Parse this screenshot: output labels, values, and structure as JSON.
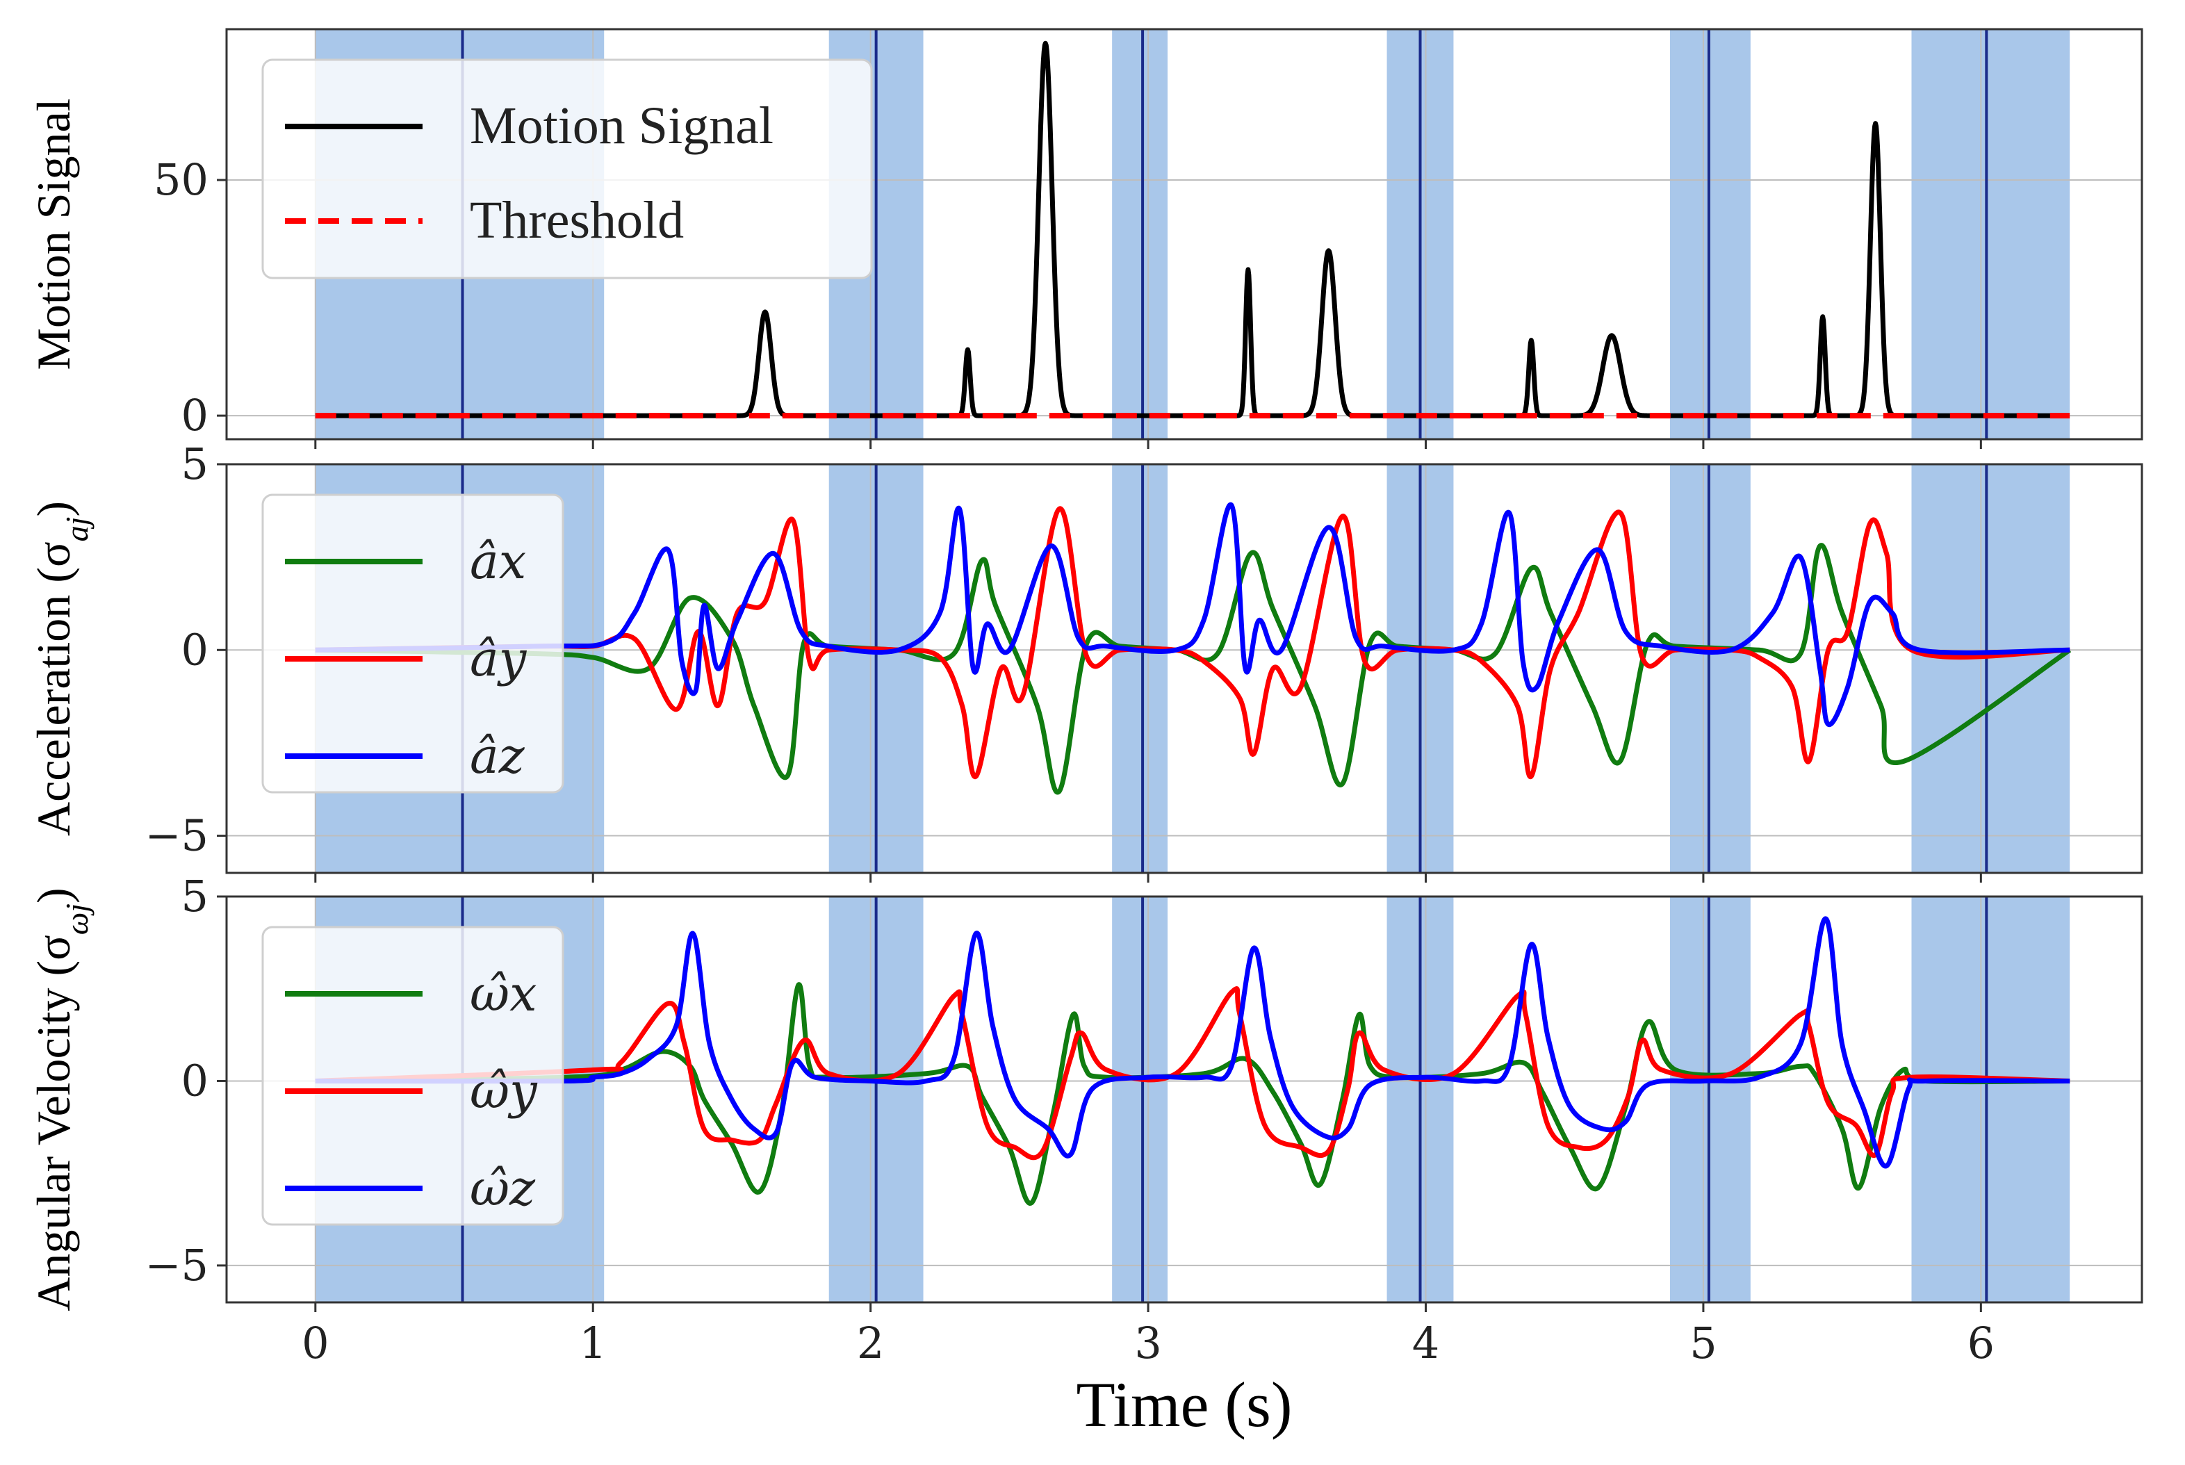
{
  "chart_data": [
    {
      "type": "line",
      "ylabel": "Motion Signal",
      "ylim": [
        -5,
        82
      ],
      "yticks": [
        0,
        50
      ],
      "ytick_labels": [
        "0",
        "50"
      ],
      "xlim": [
        -0.32,
        6.58
      ],
      "grid": true,
      "legend_position": "top-left",
      "legend": [
        "Motion Signal",
        "Threshold"
      ],
      "shaded_intervals": [
        [
          0,
          1.04
        ],
        [
          1.85,
          2.19
        ],
        [
          2.87,
          3.07
        ],
        [
          3.86,
          4.1
        ],
        [
          4.88,
          5.17
        ],
        [
          5.75,
          6.32
        ]
      ],
      "event_lines": [
        0.53,
        2.02,
        2.98,
        3.98,
        5.02,
        6.02
      ],
      "peaks": [
        {
          "t": 1.62,
          "h": 22,
          "w": 0.022
        },
        {
          "t": 2.35,
          "h": 14,
          "w": 0.009
        },
        {
          "t": 2.63,
          "h": 79,
          "w": 0.024
        },
        {
          "t": 3.36,
          "h": 31,
          "w": 0.009
        },
        {
          "t": 3.65,
          "h": 35,
          "w": 0.024
        },
        {
          "t": 4.38,
          "h": 16,
          "w": 0.009
        },
        {
          "t": 4.67,
          "h": 17,
          "w": 0.032
        },
        {
          "t": 5.43,
          "h": 21,
          "w": 0.009
        },
        {
          "t": 5.62,
          "h": 62,
          "w": 0.018
        }
      ],
      "series": [
        {
          "name": "Motion Signal",
          "color": "#000000",
          "style": "solid"
        },
        {
          "name": "Threshold",
          "color": "#ff0000",
          "style": "dashed",
          "value": 0
        }
      ]
    },
    {
      "type": "line",
      "ylabel": "Acceleration (σ",
      "ylabel_sub": "aj",
      "ylim": [
        -6,
        5
      ],
      "yticks": [
        -5,
        0,
        5
      ],
      "ytick_labels": [
        "−5",
        "0",
        "5"
      ],
      "xlim": [
        -0.32,
        6.58
      ],
      "grid": true,
      "legend_position": "top-left",
      "legend": [
        "âx",
        "ây",
        "âz"
      ],
      "series": [
        {
          "name": "âx",
          "color": "#107c10",
          "x": [
            0,
            0.8,
            1.0,
            1.2,
            1.35,
            1.5,
            1.58,
            1.7,
            1.76,
            1.85,
            2.1,
            2.3,
            2.4,
            2.45,
            2.6,
            2.68,
            2.78,
            2.9,
            3.1,
            3.25,
            3.37,
            3.45,
            3.6,
            3.7,
            3.8,
            3.9,
            4.1,
            4.25,
            4.38,
            4.45,
            4.6,
            4.7,
            4.8,
            4.9,
            5.2,
            5.35,
            5.42,
            5.5,
            5.64,
            5.72,
            6.32
          ],
          "y": [
            0,
            -0.1,
            -0.2,
            -0.5,
            1.4,
            0.3,
            -1.5,
            -3.4,
            0.2,
            0.1,
            0,
            -0.1,
            2.4,
            1.2,
            -1.5,
            -3.8,
            0.2,
            0.1,
            0,
            -0.1,
            2.6,
            1.1,
            -1.5,
            -3.6,
            0.2,
            0.1,
            0,
            -0.1,
            2.2,
            1.0,
            -1.5,
            -3.0,
            0.2,
            0.1,
            0,
            -0.1,
            2.8,
            1.0,
            -1.5,
            -3.0,
            0
          ]
        },
        {
          "name": "ây",
          "color": "#ff0000",
          "x": [
            0,
            0.8,
            1.0,
            1.15,
            1.3,
            1.38,
            1.45,
            1.52,
            1.62,
            1.72,
            1.78,
            1.85,
            2.1,
            2.25,
            2.33,
            2.38,
            2.47,
            2.55,
            2.68,
            2.78,
            2.9,
            3.1,
            3.2,
            3.33,
            3.38,
            3.45,
            3.55,
            3.7,
            3.78,
            3.9,
            4.1,
            4.2,
            4.33,
            4.38,
            4.45,
            4.55,
            4.7,
            4.78,
            4.9,
            5.1,
            5.2,
            5.32,
            5.38,
            5.45,
            5.52,
            5.6,
            5.66,
            5.75,
            6.32
          ],
          "y": [
            0,
            0.1,
            0.1,
            0.3,
            -1.6,
            0.5,
            -1.5,
            1.0,
            1.3,
            3.5,
            -0.3,
            0,
            0,
            -0.2,
            -1.5,
            -3.4,
            -0.5,
            -1.2,
            3.8,
            -0.2,
            0,
            0,
            -0.3,
            -1.3,
            -2.8,
            -0.5,
            -1.0,
            3.6,
            -0.3,
            0,
            0,
            -0.3,
            -1.5,
            -3.4,
            -0.5,
            1.0,
            3.7,
            -0.2,
            0,
            0,
            -0.2,
            -1.0,
            -3.0,
            0,
            0.5,
            3.4,
            2.6,
            0,
            0
          ]
        },
        {
          "name": "âz",
          "color": "#0000ff",
          "x": [
            0,
            0.8,
            1.05,
            1.15,
            1.27,
            1.32,
            1.37,
            1.4,
            1.45,
            1.52,
            1.65,
            1.75,
            1.85,
            2.1,
            2.25,
            2.32,
            2.37,
            2.42,
            2.5,
            2.65,
            2.75,
            2.85,
            3.1,
            3.2,
            3.3,
            3.35,
            3.4,
            3.48,
            3.65,
            3.75,
            3.85,
            4.1,
            4.2,
            4.3,
            4.35,
            4.4,
            4.48,
            4.62,
            4.72,
            4.85,
            5.1,
            5.25,
            5.35,
            5.42,
            5.45,
            5.52,
            5.6,
            5.68,
            5.78,
            6.32
          ],
          "y": [
            0,
            0.1,
            0.2,
            1.0,
            2.7,
            -0.3,
            -1.1,
            1.2,
            -0.5,
            0.8,
            2.6,
            0.5,
            0.1,
            0,
            1.0,
            3.8,
            -0.5,
            0.7,
            0,
            2.8,
            0.3,
            0.1,
            0,
            0.8,
            3.9,
            -0.5,
            0.8,
            0,
            3.3,
            0.3,
            0.1,
            0,
            0.7,
            3.7,
            -0.3,
            -1.0,
            0.8,
            2.7,
            0.5,
            0.1,
            0,
            1.0,
            2.5,
            -0.5,
            -2.0,
            -1.0,
            1.3,
            1.0,
            0,
            0
          ]
        }
      ]
    },
    {
      "type": "line",
      "ylabel": "Angular Velocity (σ",
      "ylabel_sub": "ωj",
      "ylim": [
        -6,
        5
      ],
      "yticks": [
        -5,
        0,
        5
      ],
      "ytick_labels": [
        "−5",
        "0",
        "5"
      ],
      "xlim": [
        -0.32,
        6.58
      ],
      "grid": true,
      "legend_position": "top-left",
      "legend": [
        "ω̂x",
        "ω̂y",
        "ω̂z"
      ],
      "xlabel": "Time (s)",
      "xticks": [
        0,
        1,
        2,
        3,
        4,
        5,
        6
      ],
      "xtick_labels": [
        "0",
        "1",
        "2",
        "3",
        "4",
        "5",
        "6"
      ],
      "series": [
        {
          "name": "ω̂x",
          "color": "#107c10",
          "x": [
            0,
            0.9,
            1.1,
            1.25,
            1.35,
            1.4,
            1.5,
            1.6,
            1.68,
            1.74,
            1.78,
            1.85,
            2.2,
            2.35,
            2.4,
            2.5,
            2.58,
            2.66,
            2.73,
            2.77,
            2.85,
            3.2,
            3.35,
            3.45,
            3.55,
            3.62,
            3.7,
            3.76,
            3.8,
            3.9,
            4.2,
            4.35,
            4.42,
            4.52,
            4.62,
            4.72,
            4.8,
            4.9,
            5.2,
            5.35,
            5.4,
            5.5,
            5.56,
            5.64,
            5.72,
            5.8,
            6.32
          ],
          "y": [
            0,
            0.1,
            0.3,
            0.8,
            0.4,
            -0.5,
            -1.7,
            -3.0,
            -0.8,
            2.6,
            0.4,
            0.1,
            0.2,
            0.4,
            -0.4,
            -1.8,
            -3.3,
            -0.8,
            1.8,
            0.4,
            0.1,
            0.2,
            0.6,
            -0.3,
            -1.7,
            -2.8,
            -0.5,
            1.8,
            0.4,
            0.1,
            0.2,
            0.5,
            -0.3,
            -1.8,
            -2.9,
            -0.7,
            1.6,
            0.3,
            0.2,
            0.4,
            0.2,
            -1.3,
            -2.9,
            -0.7,
            0.3,
            0,
            0
          ]
        },
        {
          "name": "ω̂y",
          "color": "#ff0000",
          "x": [
            0,
            1.0,
            1.1,
            1.27,
            1.33,
            1.4,
            1.5,
            1.6,
            1.66,
            1.76,
            1.85,
            2.1,
            2.3,
            2.33,
            2.42,
            2.52,
            2.62,
            2.72,
            2.76,
            2.85,
            3.1,
            3.3,
            3.33,
            3.42,
            3.55,
            3.65,
            3.72,
            3.76,
            3.85,
            4.1,
            4.33,
            4.36,
            4.44,
            4.55,
            4.65,
            4.73,
            4.78,
            4.85,
            5.1,
            5.35,
            5.38,
            5.45,
            5.55,
            5.62,
            5.68,
            5.75,
            6.32
          ],
          "y": [
            0,
            0.3,
            0.5,
            2.1,
            1.0,
            -1.3,
            -1.6,
            -1.6,
            -0.6,
            1.1,
            0.2,
            0.2,
            2.3,
            1.8,
            -1.2,
            -1.8,
            -1.9,
            0.6,
            1.3,
            0.3,
            0.2,
            2.4,
            1.8,
            -1.2,
            -1.8,
            -1.9,
            -0.2,
            1.3,
            0.3,
            0.2,
            2.3,
            1.8,
            -1.2,
            -1.8,
            -1.6,
            -0.4,
            1.1,
            0.3,
            0.2,
            1.8,
            1.5,
            -0.6,
            -1.2,
            -2.0,
            -0.3,
            0.1,
            0
          ]
        },
        {
          "name": "ω̂z",
          "color": "#0000ff",
          "x": [
            0,
            0.9,
            1.0,
            1.1,
            1.2,
            1.3,
            1.36,
            1.42,
            1.5,
            1.58,
            1.66,
            1.72,
            1.8,
            2.0,
            2.2,
            2.3,
            2.38,
            2.44,
            2.52,
            2.64,
            2.72,
            2.8,
            3.0,
            3.2,
            3.3,
            3.38,
            3.44,
            3.52,
            3.64,
            3.72,
            3.8,
            4.0,
            4.2,
            4.3,
            4.38,
            4.44,
            4.52,
            4.64,
            4.72,
            4.8,
            5.0,
            5.2,
            5.35,
            5.44,
            5.5,
            5.58,
            5.66,
            5.74,
            5.8,
            6.32
          ],
          "y": [
            0,
            0,
            0.1,
            0.2,
            0.6,
            1.5,
            4.0,
            1.0,
            -0.5,
            -1.3,
            -1.4,
            0.5,
            0.1,
            0,
            0,
            0.6,
            4.0,
            1.5,
            -0.5,
            -1.3,
            -2.0,
            -0.2,
            0.1,
            0.1,
            0.4,
            3.6,
            1.2,
            -0.7,
            -1.5,
            -1.3,
            -0.1,
            0.1,
            0,
            0.4,
            3.7,
            1.2,
            -0.7,
            -1.3,
            -1.1,
            -0.1,
            0,
            0.1,
            1.0,
            4.4,
            1.0,
            -0.8,
            -2.3,
            -0.2,
            0,
            0
          ]
        }
      ]
    }
  ]
}
